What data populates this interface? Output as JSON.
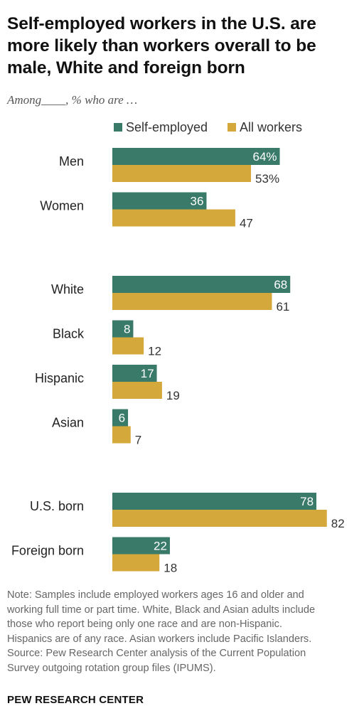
{
  "title_lines": [
    "Self-employed workers in the U.S. are",
    "more likely than workers overall to be",
    "male, White and foreign born"
  ],
  "subtitle": "Among____, % who are …",
  "legend": {
    "self_employed": "Self-employed",
    "all_workers": "All workers"
  },
  "colors": {
    "self_employed": "#3a7a68",
    "all_workers": "#d4a83a"
  },
  "chart_data": {
    "type": "bar",
    "orientation": "horizontal",
    "title": "Self-employed workers in the U.S. are more likely than workers overall to be male, White and foreign born",
    "categories": [
      "Men",
      "Women",
      "White",
      "Black",
      "Hispanic",
      "Asian",
      "U.S. born",
      "Foreign born"
    ],
    "groups": [
      [
        "Men",
        "Women"
      ],
      [
        "White",
        "Black",
        "Hispanic",
        "Asian"
      ],
      [
        "U.S. born",
        "Foreign born"
      ]
    ],
    "series": [
      {
        "name": "Self-employed",
        "values": [
          64,
          36,
          68,
          8,
          17,
          6,
          78,
          22
        ]
      },
      {
        "name": "All workers",
        "values": [
          53,
          47,
          61,
          12,
          19,
          7,
          82,
          18
        ]
      }
    ],
    "data_labels": [
      [
        "64%",
        "36",
        "68",
        "8",
        "17",
        "6",
        "78",
        "22"
      ],
      [
        "53%",
        "47",
        "61",
        "12",
        "19",
        "7",
        "82",
        "18"
      ]
    ],
    "xlim": [
      0,
      100
    ],
    "grid": false,
    "legend_position": "top"
  },
  "note_lines": [
    "Note: Samples include employed workers ages 16 and older and",
    "working full time or part time. White, Black and Asian adults include",
    "those who report being only one race and are non-Hispanic.",
    "Hispanics are of any race. Asian workers include Pacific Islanders.",
    "Source: Pew Research Center analysis of the Current Population",
    "Survey outgoing rotation group files (IPUMS)."
  ],
  "brand": "PEW RESEARCH CENTER"
}
